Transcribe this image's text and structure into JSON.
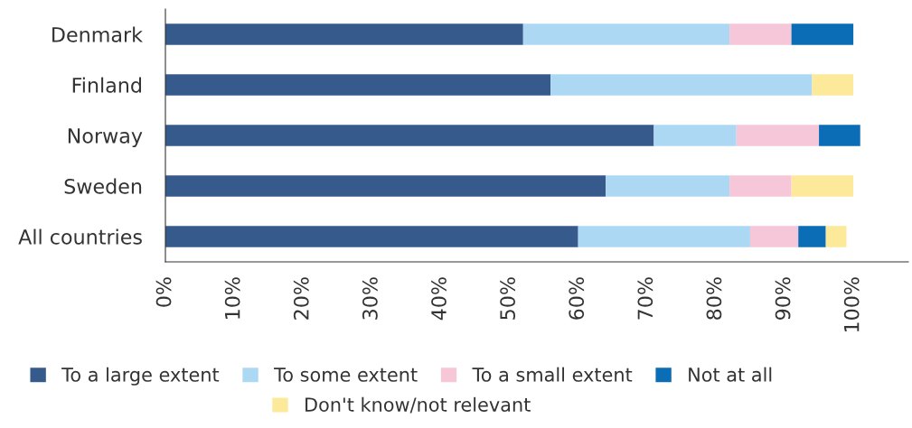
{
  "chart_data": {
    "type": "bar",
    "orientation": "horizontal",
    "stacked": true,
    "categories": [
      "Denmark",
      "Finland",
      "Norway",
      "Sweden",
      "All countries"
    ],
    "series": [
      {
        "name": "To a large extent",
        "color": "#375a8c",
        "values": [
          52,
          56,
          71,
          64,
          60
        ]
      },
      {
        "name": "To some extent",
        "color": "#add8f4",
        "values": [
          30,
          38,
          12,
          18,
          25
        ]
      },
      {
        "name": "To a small extent",
        "color": "#f6c6d9",
        "values": [
          9,
          null,
          12,
          9,
          7
        ]
      },
      {
        "name": "Not at all",
        "color": "#0a6db5",
        "values": [
          9,
          null,
          6,
          null,
          4
        ]
      },
      {
        "name": "Don't know/not relevant",
        "color": "#fde99a",
        "values": [
          null,
          6,
          null,
          9,
          3
        ]
      }
    ],
    "xlim": [
      0,
      108
    ],
    "xticks": [
      {
        "value": 0,
        "label": "0%"
      },
      {
        "value": 10,
        "label": "10%"
      },
      {
        "value": 20,
        "label": "20%"
      },
      {
        "value": 30,
        "label": "30%"
      },
      {
        "value": 40,
        "label": "40%"
      },
      {
        "value": 50,
        "label": "50%"
      },
      {
        "value": 60,
        "label": "60%"
      },
      {
        "value": 70,
        "label": "70%"
      },
      {
        "value": 80,
        "label": "80%"
      },
      {
        "value": 90,
        "label": "90%"
      },
      {
        "value": 100,
        "label": "100%"
      }
    ],
    "grid": false,
    "legend": "bottom"
  }
}
